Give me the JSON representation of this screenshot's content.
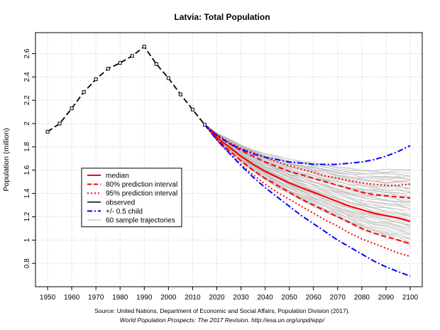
{
  "chart_data": {
    "type": "line",
    "title": "Latvia: Total Population",
    "xlabel": "",
    "ylabel": "Population (million)",
    "xlim": [
      1945,
      2105
    ],
    "ylim": [
      0.6,
      2.78
    ],
    "x_ticks": [
      1950,
      1960,
      1970,
      1980,
      1990,
      2000,
      2010,
      2020,
      2030,
      2040,
      2050,
      2060,
      2070,
      2080,
      2090,
      2100
    ],
    "y_ticks": [
      0.8,
      1.0,
      1.2,
      1.4,
      1.6,
      1.8,
      2.0,
      2.2,
      2.4,
      2.6
    ],
    "grid": true,
    "legend_position": "center-left",
    "legend": [
      {
        "key": "median",
        "label": "median",
        "color": "#ff0000",
        "style": "solid"
      },
      {
        "key": "pi80",
        "label": "80% prediction interval",
        "color": "#ff0000",
        "style": "dashed"
      },
      {
        "key": "pi95",
        "label": "95% prediction interval",
        "color": "#ff0000",
        "style": "dotted"
      },
      {
        "key": "observed",
        "label": "observed",
        "color": "#000000",
        "style": "solid"
      },
      {
        "key": "half_child",
        "label": "+/- 0.5 child",
        "color": "#0000ff",
        "style": "dashdot"
      },
      {
        "key": "trajectories",
        "label": "60 sample trajectories",
        "color": "#b3b3b3",
        "style": "solid"
      }
    ],
    "observed": {
      "x": [
        1950,
        1955,
        1960,
        1965,
        1970,
        1975,
        1980,
        1985,
        1990,
        1995,
        2000,
        2005,
        2010,
        2015
      ],
      "values": [
        1.93,
        2.0,
        2.13,
        2.27,
        2.38,
        2.47,
        2.52,
        2.58,
        2.66,
        2.51,
        2.39,
        2.25,
        2.12,
        1.99
      ]
    },
    "projection_x": [
      2015,
      2020,
      2025,
      2030,
      2035,
      2040,
      2045,
      2050,
      2055,
      2060,
      2065,
      2070,
      2075,
      2080,
      2085,
      2090,
      2095,
      2100
    ],
    "series": [
      {
        "name": "median",
        "values": [
          1.99,
          1.88,
          1.8,
          1.72,
          1.65,
          1.59,
          1.54,
          1.49,
          1.45,
          1.41,
          1.37,
          1.33,
          1.29,
          1.26,
          1.23,
          1.21,
          1.19,
          1.16
        ]
      },
      {
        "name": "80% upper",
        "values": [
          1.99,
          1.9,
          1.83,
          1.77,
          1.72,
          1.67,
          1.63,
          1.59,
          1.56,
          1.53,
          1.5,
          1.47,
          1.44,
          1.41,
          1.39,
          1.38,
          1.37,
          1.36
        ]
      },
      {
        "name": "80% lower",
        "values": [
          1.99,
          1.87,
          1.77,
          1.68,
          1.6,
          1.53,
          1.47,
          1.41,
          1.35,
          1.3,
          1.25,
          1.2,
          1.15,
          1.1,
          1.06,
          1.03,
          1.0,
          0.97
        ]
      },
      {
        "name": "95% upper",
        "values": [
          1.99,
          1.91,
          1.84,
          1.79,
          1.75,
          1.71,
          1.67,
          1.64,
          1.61,
          1.58,
          1.55,
          1.53,
          1.51,
          1.49,
          1.48,
          1.47,
          1.47,
          1.48
        ]
      },
      {
        "name": "95% lower",
        "values": [
          1.99,
          1.86,
          1.75,
          1.65,
          1.56,
          1.48,
          1.41,
          1.35,
          1.29,
          1.23,
          1.17,
          1.12,
          1.06,
          1.01,
          0.97,
          0.93,
          0.89,
          0.86
        ]
      },
      {
        "name": "+0.5 child",
        "values": [
          1.99,
          1.9,
          1.83,
          1.78,
          1.74,
          1.71,
          1.69,
          1.67,
          1.66,
          1.65,
          1.65,
          1.65,
          1.66,
          1.67,
          1.69,
          1.72,
          1.76,
          1.81
        ]
      },
      {
        "name": "-0.5 child",
        "values": [
          1.99,
          1.86,
          1.75,
          1.64,
          1.54,
          1.45,
          1.37,
          1.29,
          1.21,
          1.14,
          1.07,
          1.0,
          0.94,
          0.88,
          0.82,
          0.77,
          0.73,
          0.69
        ]
      }
    ],
    "trajectory_count": 60,
    "trajectory_range_2100": [
      0.95,
      1.6
    ]
  },
  "source": {
    "line1": "Source: United Nations, Department of Economic and Social Affairs, Population Division (2017).",
    "line2": "World Population Prospects: The 2017 Revision. http://esa.un.org/unpd/wpp/"
  }
}
